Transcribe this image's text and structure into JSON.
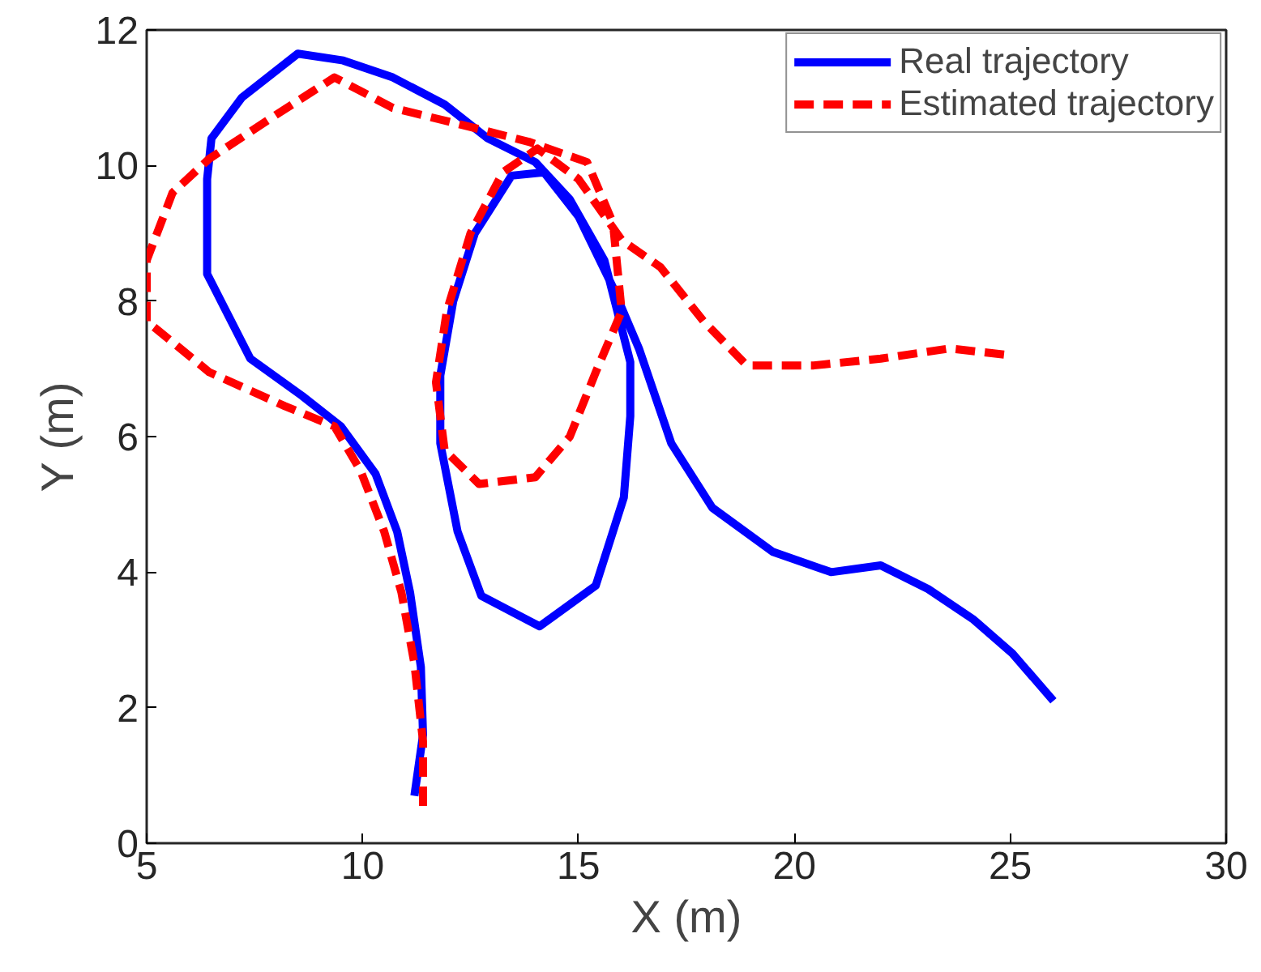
{
  "chart_data": {
    "type": "line",
    "xlabel": "X (m)",
    "ylabel": "Y (m)",
    "xlim": [
      5,
      30
    ],
    "xticks": [
      5,
      10,
      15,
      20,
      25,
      30
    ],
    "ylim": [
      0,
      12
    ],
    "yticks": [
      0,
      2,
      4,
      6,
      8,
      10,
      12
    ],
    "grid": false,
    "legend": "top right",
    "series": [
      {
        "name": "Real trajectory",
        "color": "#0000ff",
        "line_style": "solid",
        "x": [
          11.2,
          11.4,
          11.35,
          11.1,
          10.8,
          10.3,
          9.5,
          8.6,
          7.4,
          6.4,
          6.4,
          6.5,
          7.2,
          8.5,
          9.55,
          10.7,
          11.9,
          12.9,
          14.0,
          14.8,
          15.6,
          16.2,
          16.2,
          16.05,
          15.4,
          14.1,
          12.75,
          12.2,
          11.8,
          11.8,
          12.1,
          12.6,
          13.45,
          14.2,
          15.0,
          15.8,
          16.4,
          17.15,
          18.1,
          19.5,
          20.85,
          22.0,
          23.1,
          24.15,
          25.05,
          26.0
        ],
        "values": [
          0.7,
          1.6,
          2.6,
          3.7,
          4.6,
          5.45,
          6.15,
          6.6,
          7.15,
          8.4,
          9.8,
          10.4,
          11.0,
          11.65,
          11.55,
          11.3,
          10.9,
          10.4,
          10.05,
          9.5,
          8.6,
          7.1,
          6.3,
          5.1,
          3.8,
          3.2,
          3.65,
          4.6,
          5.9,
          6.9,
          8.0,
          9.0,
          9.85,
          9.9,
          9.25,
          8.2,
          7.3,
          5.9,
          4.95,
          4.3,
          4.0,
          4.1,
          3.75,
          3.3,
          2.8,
          2.1
        ]
      },
      {
        "name": "Estimated trajectory",
        "color": "#ff0000",
        "line_style": "dashed",
        "x": [
          11.4,
          11.4,
          11.2,
          10.9,
          10.5,
          9.95,
          9.35,
          8.2,
          6.45,
          5.2,
          5.0,
          5.0,
          5.6,
          6.45,
          8.0,
          9.35,
          10.7,
          12.3,
          13.85,
          15.2,
          15.8,
          16.0,
          15.4,
          14.8,
          14.0,
          12.7,
          11.9,
          11.7,
          11.95,
          12.5,
          13.25,
          14.05,
          15.0,
          16.0,
          16.9,
          17.9,
          18.9,
          20.45,
          22.0,
          23.6,
          25.0
        ],
        "values": [
          0.55,
          1.5,
          2.65,
          3.7,
          4.6,
          5.5,
          6.15,
          6.45,
          6.95,
          7.6,
          7.7,
          8.6,
          9.6,
          10.1,
          10.75,
          11.3,
          10.85,
          10.6,
          10.35,
          10.05,
          9.15,
          7.85,
          6.95,
          6.0,
          5.4,
          5.3,
          5.8,
          6.8,
          7.85,
          9.0,
          9.9,
          10.25,
          9.8,
          8.9,
          8.5,
          7.7,
          7.05,
          7.05,
          7.15,
          7.3,
          7.2
        ]
      }
    ]
  }
}
